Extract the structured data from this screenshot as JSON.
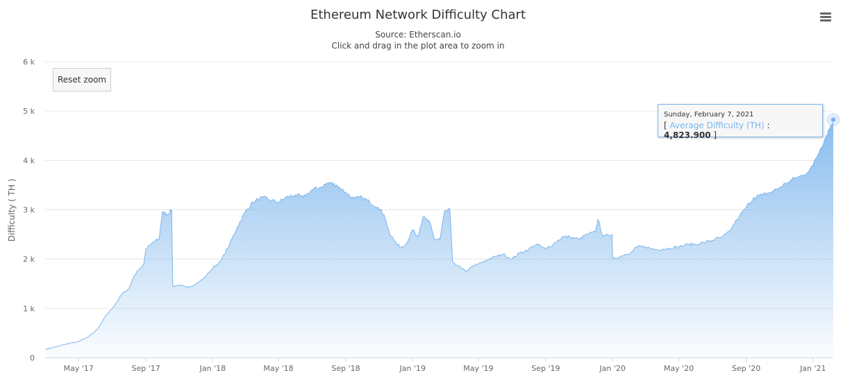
{
  "header": {
    "title": "Ethereum Network Difficulty Chart",
    "subtitle_source": "Source: Etherscan.io",
    "subtitle_hint": "Click and drag in the plot area to zoom in"
  },
  "controls": {
    "reset_zoom_label": "Reset zoom",
    "menu_icon": "hamburger-menu-icon"
  },
  "tooltip": {
    "date": "Sunday, February 7, 2021",
    "open_bracket": "[",
    "series_label": "Average Difficulty (TH)",
    "separator": ":",
    "value": "4,823.900",
    "close_bracket": "]"
  },
  "colors": {
    "series": "#7cb5ec",
    "tooltip_border": "#7cb5ec",
    "grid": "#e6e6e6"
  },
  "chart_data": {
    "type": "area",
    "title": "Ethereum Network Difficulty Chart",
    "subtitle": "Source: Etherscan.io",
    "xlabel": "",
    "ylabel": "Difficulty ( TH )",
    "ylim": [
      0,
      6000
    ],
    "xlim": [
      "2017-03-01",
      "2021-02-07"
    ],
    "y_ticks": [
      "0",
      "1 k",
      "2 k",
      "3 k",
      "4 k",
      "5 k",
      "6 k"
    ],
    "x_ticks": [
      {
        "label": "May '17",
        "date": "2017-05-01"
      },
      {
        "label": "Sep '17",
        "date": "2017-09-01"
      },
      {
        "label": "Jan '18",
        "date": "2018-01-01"
      },
      {
        "label": "May '18",
        "date": "2018-05-01"
      },
      {
        "label": "Sep '18",
        "date": "2018-09-01"
      },
      {
        "label": "Jan '19",
        "date": "2019-01-01"
      },
      {
        "label": "May '19",
        "date": "2019-05-01"
      },
      {
        "label": "Sep '19",
        "date": "2019-09-01"
      },
      {
        "label": "Jan '20",
        "date": "2020-01-01"
      },
      {
        "label": "May '20",
        "date": "2020-05-01"
      },
      {
        "label": "Sep '20",
        "date": "2020-09-01"
      },
      {
        "label": "Jan '21",
        "date": "2021-01-01"
      }
    ],
    "grid": true,
    "legend": false,
    "series": [
      {
        "name": "Average Difficulty (TH)",
        "points": [
          [
            "2017-03-01",
            170
          ],
          [
            "2017-03-20",
            220
          ],
          [
            "2017-04-10",
            280
          ],
          [
            "2017-05-01",
            330
          ],
          [
            "2017-05-20",
            430
          ],
          [
            "2017-06-05",
            580
          ],
          [
            "2017-06-20",
            850
          ],
          [
            "2017-07-05",
            1050
          ],
          [
            "2017-07-20",
            1300
          ],
          [
            "2017-08-01",
            1400
          ],
          [
            "2017-08-10",
            1650
          ],
          [
            "2017-08-20",
            1800
          ],
          [
            "2017-08-28",
            1900
          ],
          [
            "2017-09-01",
            2200
          ],
          [
            "2017-09-15",
            2350
          ],
          [
            "2017-09-25",
            2400
          ],
          [
            "2017-10-01",
            2950
          ],
          [
            "2017-10-10",
            2900
          ],
          [
            "2017-10-18",
            3000
          ],
          [
            "2017-10-20",
            1450
          ],
          [
            "2017-11-01",
            1470
          ],
          [
            "2017-11-15",
            1420
          ],
          [
            "2017-12-01",
            1500
          ],
          [
            "2017-12-15",
            1600
          ],
          [
            "2018-01-01",
            1820
          ],
          [
            "2018-01-15",
            1950
          ],
          [
            "2018-02-01",
            2300
          ],
          [
            "2018-02-15",
            2650
          ],
          [
            "2018-03-01",
            2950
          ],
          [
            "2018-03-15",
            3150
          ],
          [
            "2018-04-01",
            3250
          ],
          [
            "2018-04-15",
            3200
          ],
          [
            "2018-05-01",
            3150
          ],
          [
            "2018-05-15",
            3250
          ],
          [
            "2018-06-01",
            3300
          ],
          [
            "2018-06-15",
            3250
          ],
          [
            "2018-07-01",
            3400
          ],
          [
            "2018-07-15",
            3450
          ],
          [
            "2018-08-01",
            3550
          ],
          [
            "2018-08-15",
            3500
          ],
          [
            "2018-09-01",
            3350
          ],
          [
            "2018-09-15",
            3220
          ],
          [
            "2018-10-01",
            3250
          ],
          [
            "2018-10-15",
            3150
          ],
          [
            "2018-10-30",
            3050
          ],
          [
            "2018-11-10",
            2900
          ],
          [
            "2018-11-20",
            2500
          ],
          [
            "2018-12-01",
            2350
          ],
          [
            "2018-12-10",
            2220
          ],
          [
            "2018-12-20",
            2300
          ],
          [
            "2019-01-01",
            2600
          ],
          [
            "2019-01-10",
            2450
          ],
          [
            "2019-01-20",
            2850
          ],
          [
            "2019-02-01",
            2750
          ],
          [
            "2019-02-10",
            2400
          ],
          [
            "2019-02-20",
            2400
          ],
          [
            "2019-02-28",
            2950
          ],
          [
            "2019-03-10",
            3000
          ],
          [
            "2019-03-15",
            1950
          ],
          [
            "2019-04-01",
            1800
          ],
          [
            "2019-04-10",
            1750
          ],
          [
            "2019-04-20",
            1850
          ],
          [
            "2019-05-01",
            1900
          ],
          [
            "2019-05-20",
            2000
          ],
          [
            "2019-06-01",
            2050
          ],
          [
            "2019-06-15",
            2100
          ],
          [
            "2019-07-01",
            2000
          ],
          [
            "2019-07-15",
            2120
          ],
          [
            "2019-08-01",
            2200
          ],
          [
            "2019-08-15",
            2300
          ],
          [
            "2019-09-01",
            2200
          ],
          [
            "2019-09-15",
            2300
          ],
          [
            "2019-10-01",
            2450
          ],
          [
            "2019-10-15",
            2450
          ],
          [
            "2019-11-01",
            2400
          ],
          [
            "2019-11-15",
            2500
          ],
          [
            "2019-12-01",
            2550
          ],
          [
            "2019-12-05",
            2800
          ],
          [
            "2019-12-15",
            2450
          ],
          [
            "2019-12-31",
            2500
          ],
          [
            "2020-01-01",
            2020
          ],
          [
            "2020-01-15",
            2050
          ],
          [
            "2020-02-01",
            2100
          ],
          [
            "2020-02-15",
            2250
          ],
          [
            "2020-03-01",
            2250
          ],
          [
            "2020-03-15",
            2200
          ],
          [
            "2020-04-01",
            2200
          ],
          [
            "2020-04-15",
            2220
          ],
          [
            "2020-05-01",
            2250
          ],
          [
            "2020-05-20",
            2300
          ],
          [
            "2020-06-01",
            2300
          ],
          [
            "2020-06-20",
            2350
          ],
          [
            "2020-07-01",
            2380
          ],
          [
            "2020-07-20",
            2450
          ],
          [
            "2020-08-01",
            2550
          ],
          [
            "2020-08-15",
            2800
          ],
          [
            "2020-09-01",
            3050
          ],
          [
            "2020-09-15",
            3250
          ],
          [
            "2020-10-01",
            3300
          ],
          [
            "2020-10-15",
            3350
          ],
          [
            "2020-11-01",
            3450
          ],
          [
            "2020-11-15",
            3550
          ],
          [
            "2020-12-01",
            3650
          ],
          [
            "2020-12-15",
            3700
          ],
          [
            "2021-01-01",
            3900
          ],
          [
            "2021-01-15",
            4250
          ],
          [
            "2021-01-25",
            4500
          ],
          [
            "2021-02-07",
            4823.9
          ]
        ]
      }
    ],
    "highlighted_point": {
      "x": "2021-02-07",
      "y": 4823.9
    }
  }
}
